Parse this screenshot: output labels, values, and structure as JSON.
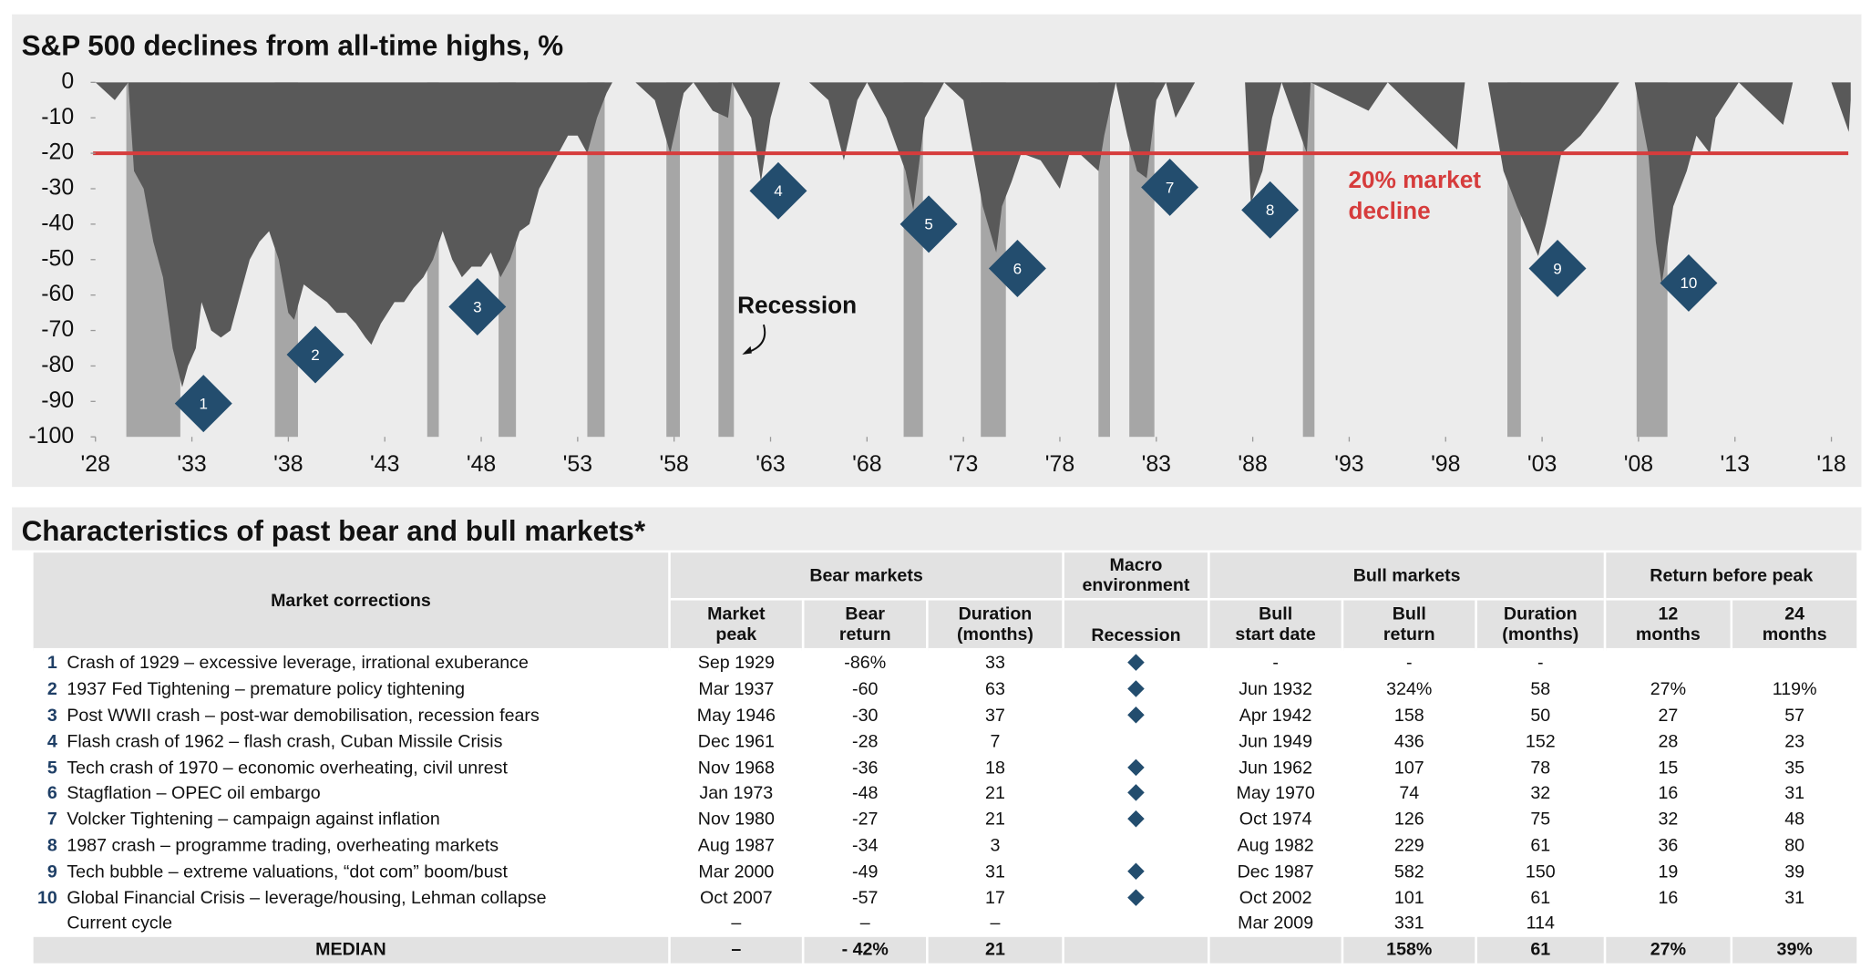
{
  "chart_data": {
    "type": "area",
    "title": "S&P 500 declines from all-time highs, %",
    "color": "#595959",
    "x": [
      1928,
      1929.0,
      1929.7,
      1930.0,
      1930.5,
      1931.0,
      1931.5,
      1932.0,
      1932.5,
      1932.8,
      1933.2,
      1933.5,
      1934,
      1934.5,
      1935,
      1935.5,
      1936,
      1936.5,
      1937,
      1937.5,
      1938,
      1938.3,
      1938.8,
      1939.5,
      1940,
      1940.5,
      1941,
      1941.5,
      1942,
      1942.3,
      1942.8,
      1943.5,
      1944,
      1944.5,
      1945,
      1945.5,
      1946,
      1946.5,
      1947,
      1947.5,
      1948,
      1948.5,
      1949,
      1949.5,
      1950,
      1950.5,
      1951,
      1951.5,
      1952,
      1952.5,
      1953,
      1953.5,
      1954,
      1954.5,
      1954.8,
      1956,
      1957,
      1957.8,
      1958.5,
      1959,
      1960,
      1960.8,
      1961,
      1962,
      1962.5,
      1963,
      1963.5,
      1965,
      1966,
      1966.8,
      1967.5,
      1968,
      1969,
      1970,
      1970.4,
      1971,
      1972,
      1973,
      1973.5,
      1974,
      1974.7,
      1975,
      1975.5,
      1976,
      1977,
      1978,
      1978.5,
      1979,
      1980,
      1980.3,
      1980.9,
      1981.5,
      1982,
      1982.5,
      1983,
      1983.5,
      1984,
      1985,
      1987.6,
      1987.9,
      1988.5,
      1989,
      1989.5,
      1990.8,
      1991,
      1994,
      1995,
      1998.6,
      1999,
      2000.2,
      2001,
      2001.7,
      2002.8,
      2003.2,
      2004,
      2005,
      2006,
      2007,
      2007.8,
      2008.5,
      2008.9,
      2009.2,
      2009.8,
      2010.5,
      2011,
      2011.7,
      2012,
      2013.2,
      2015.5,
      2016,
      2018,
      2018.9,
      2019
    ],
    "values": [
      0,
      -5,
      0,
      -25,
      -30,
      -45,
      -55,
      -75,
      -86,
      -80,
      -75,
      -62,
      -70,
      -72,
      -70,
      -60,
      -50,
      -45,
      -42,
      -50,
      -65,
      -67,
      -57,
      -60,
      -62,
      -65,
      -65,
      -68,
      -72,
      -74,
      -68,
      -62,
      -62,
      -58,
      -55,
      -50,
      -42,
      -50,
      -55,
      -52,
      -52,
      -48,
      -55,
      -50,
      -42,
      -40,
      -30,
      -25,
      -20,
      -15,
      -15,
      -20,
      -10,
      -3,
      0,
      0,
      -5,
      -20,
      -3,
      0,
      -8,
      -10,
      0,
      -10,
      -28,
      -10,
      0,
      0,
      -5,
      -22,
      -5,
      0,
      -10,
      -25,
      -36,
      -10,
      0,
      -5,
      -20,
      -35,
      -48,
      -35,
      -28,
      -20,
      -22,
      -30,
      -20,
      -20,
      -25,
      -15,
      0,
      -15,
      -25,
      -27,
      -5,
      0,
      -10,
      0,
      0,
      -34,
      -25,
      -10,
      0,
      -20,
      0,
      -8,
      0,
      -19,
      0,
      0,
      -25,
      -35,
      -49,
      -40,
      -20,
      -15,
      -8,
      0,
      0,
      -20,
      -45,
      -57,
      -35,
      -25,
      -15,
      -20,
      -10,
      0,
      -12,
      0,
      0,
      -14,
      -5
    ],
    "xlim": [
      1928,
      2019
    ],
    "xticks": [
      {
        "value": 1928,
        "label": "'28"
      },
      {
        "value": 1933,
        "label": "'33"
      },
      {
        "value": 1938,
        "label": "'38"
      },
      {
        "value": 1943,
        "label": "'43"
      },
      {
        "value": 1948,
        "label": "'48"
      },
      {
        "value": 1953,
        "label": "'53"
      },
      {
        "value": 1958,
        "label": "'58"
      },
      {
        "value": 1963,
        "label": "'63"
      },
      {
        "value": 1968,
        "label": "'68"
      },
      {
        "value": 1973,
        "label": "'73"
      },
      {
        "value": 1978,
        "label": "'78"
      },
      {
        "value": 1983,
        "label": "'83"
      },
      {
        "value": 1988,
        "label": "'88"
      },
      {
        "value": 1993,
        "label": "'93"
      },
      {
        "value": 1998,
        "label": "'98"
      },
      {
        "value": 2003,
        "label": "'03"
      },
      {
        "value": 2008,
        "label": "'08"
      },
      {
        "value": 2013,
        "label": "'13"
      },
      {
        "value": 2018,
        "label": "'18"
      }
    ],
    "ylim": [
      -100,
      0
    ],
    "yticks": [
      0,
      -10,
      -20,
      -30,
      -40,
      -50,
      -60,
      -70,
      -80,
      -90,
      -100
    ],
    "recession_color": "#a6a6a6",
    "recession_label": "Recession",
    "recessions": [
      {
        "start": 1929.6,
        "end": 1932.4
      },
      {
        "start": 1937.3,
        "end": 1938.5
      },
      {
        "start": 1945.2,
        "end": 1945.8
      },
      {
        "start": 1948.9,
        "end": 1949.8
      },
      {
        "start": 1953.5,
        "end": 1954.4
      },
      {
        "start": 1957.6,
        "end": 1958.3
      },
      {
        "start": 1960.3,
        "end": 1961.1
      },
      {
        "start": 1969.9,
        "end": 1970.9
      },
      {
        "start": 1973.9,
        "end": 1975.2
      },
      {
        "start": 1980.0,
        "end": 1980.6
      },
      {
        "start": 1981.6,
        "end": 1982.9
      },
      {
        "start": 1990.6,
        "end": 1991.2
      },
      {
        "start": 2001.2,
        "end": 2001.9
      },
      {
        "start": 2007.9,
        "end": 2009.5
      }
    ],
    "threshold": {
      "value": -20,
      "color": "#d63c3c",
      "label": [
        "20% market",
        "decline"
      ]
    },
    "marker_color": "#234d6e",
    "markers": [
      {
        "label": "1",
        "x": 1933.6,
        "y": -90.6
      },
      {
        "label": "2",
        "x": 1939.4,
        "y": -76.8
      },
      {
        "label": "3",
        "x": 1947.8,
        "y": -63.3
      },
      {
        "label": "4",
        "x": 1963.4,
        "y": -30.6
      },
      {
        "label": "5",
        "x": 1971.2,
        "y": -40
      },
      {
        "label": "6",
        "x": 1975.8,
        "y": -52.5
      },
      {
        "label": "7",
        "x": 1983.7,
        "y": -29.6
      },
      {
        "label": "8",
        "x": 1988.9,
        "y": -36
      },
      {
        "label": "9",
        "x": 2003.8,
        "y": -52.5
      },
      {
        "label": "10",
        "x": 2010.6,
        "y": -56.6
      }
    ]
  },
  "table": {
    "title": "Characteristics of past bear and bull markets*",
    "groups": [
      {
        "label": [
          "Market corrections"
        ],
        "span": 2,
        "rows": 2
      },
      {
        "label": [
          "Bear markets"
        ],
        "span": 3,
        "rows": 1
      },
      {
        "label": [
          "Macro",
          "environment"
        ],
        "span": 1,
        "rows": 1
      },
      {
        "label": [
          "Bull markets"
        ],
        "span": 3,
        "rows": 1
      },
      {
        "label": [
          "Return before peak"
        ],
        "span": 2,
        "rows": 1
      }
    ],
    "headers": [
      [
        "Market",
        "peak"
      ],
      [
        "Bear",
        "return"
      ],
      [
        "Duration",
        "(months)"
      ],
      [
        "Recession"
      ],
      [
        "Bull",
        "start date"
      ],
      [
        "Bull",
        "return"
      ],
      [
        "Duration",
        "(months)"
      ],
      [
        "12",
        "months"
      ],
      [
        "24",
        "months"
      ]
    ],
    "rows": [
      {
        "num": "1",
        "name": "Crash of 1929 – excessive leverage, irrational exuberance",
        "cells": [
          "Sep 1929",
          "-86%",
          "33",
          true,
          "-",
          "-",
          "-",
          null,
          null
        ]
      },
      {
        "num": "2",
        "name": "1937 Fed Tightening – premature policy tightening",
        "cells": [
          "Mar 1937",
          "-60",
          "63",
          true,
          "Jun 1932",
          "324%",
          "58",
          "27%",
          "119%"
        ]
      },
      {
        "num": "3",
        "name": "Post WWII crash – post-war demobilisation, recession fears",
        "cells": [
          "May 1946",
          "-30",
          "37",
          true,
          "Apr 1942",
          "158",
          "50",
          "27",
          "57"
        ]
      },
      {
        "num": "4",
        "name": "Flash crash of 1962 – flash crash, Cuban Missile Crisis",
        "cells": [
          "Dec 1961",
          "-28",
          "7",
          null,
          "Jun 1949",
          "436",
          "152",
          "28",
          "23"
        ]
      },
      {
        "num": "5",
        "name": "Tech crash of 1970 – economic overheating, civil unrest",
        "cells": [
          "Nov 1968",
          "-36",
          "18",
          true,
          "Jun 1962",
          "107",
          "78",
          "15",
          "35"
        ]
      },
      {
        "num": "6",
        "name": "Stagflation – OPEC oil embargo",
        "cells": [
          "Jan 1973",
          "-48",
          "21",
          true,
          "May 1970",
          "74",
          "32",
          "16",
          "31"
        ]
      },
      {
        "num": "7",
        "name": "Volcker Tightening – campaign against inflation",
        "cells": [
          "Nov 1980",
          "-27",
          "21",
          true,
          "Oct 1974",
          "126",
          "75",
          "32",
          "48"
        ]
      },
      {
        "num": "8",
        "name": "1987 crash – programme trading, overheating markets",
        "cells": [
          "Aug 1987",
          "-34",
          "3",
          null,
          "Aug 1982",
          "229",
          "61",
          "36",
          "80"
        ]
      },
      {
        "num": "9",
        "name": "Tech bubble – extreme valuations, “dot com” boom/bust",
        "cells": [
          "Mar 2000",
          "-49",
          "31",
          true,
          "Dec 1987",
          "582",
          "150",
          "19",
          "39"
        ]
      },
      {
        "num": "10",
        "name": "Global Financial Crisis – leverage/housing, Lehman collapse",
        "cells": [
          "Oct 2007",
          "-57",
          "17",
          true,
          "Oct 2002",
          "101",
          "61",
          "16",
          "31"
        ]
      },
      {
        "num": null,
        "name": "Current cycle",
        "cells": [
          "–",
          "–",
          "–",
          null,
          "Mar 2009",
          "331",
          "114",
          null,
          null
        ]
      }
    ],
    "median": {
      "name": "MEDIAN",
      "cells": [
        "–",
        "- 42%",
        "21",
        null,
        null,
        "158%",
        "61",
        "27%",
        "39%"
      ]
    }
  }
}
